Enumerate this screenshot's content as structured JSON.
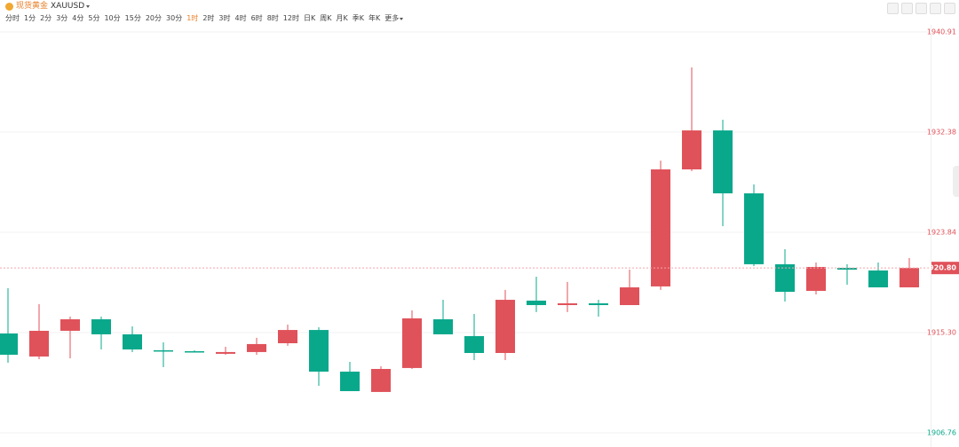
{
  "toolbar": {
    "symbol_name": "现货黄金",
    "symbol": "XAUUSD",
    "intervals": [
      "分时",
      "1分",
      "2分",
      "3分",
      "4分",
      "5分",
      "10分",
      "15分",
      "20分",
      "30分",
      "1时",
      "2时",
      "3时",
      "4时",
      "6时",
      "8时",
      "12时",
      "日K",
      "周K",
      "月K",
      "季K",
      "年K",
      "更多"
    ],
    "active_interval": 10
  },
  "chart_data": {
    "type": "candlestick",
    "up_color": "#e0525a",
    "down_color": "#0aa88b",
    "grid": true,
    "open": [
      1915.22,
      1913.26,
      1915.45,
      1916.43,
      1915.15,
      1913.79,
      1913.71,
      1913.49,
      1913.64,
      1914.39,
      1915.52,
      1911.97,
      1910.24,
      1912.28,
      1916.43,
      1915.0,
      1913.56,
      1918.02,
      1917.64,
      1917.79,
      1917.64,
      1919.23,
      1929.2,
      1932.52,
      1927.16,
      1921.12,
      1918.85,
      1920.81,
      1920.59,
      1919.15
    ],
    "high": [
      1919.08,
      1917.72,
      1916.66,
      1916.66,
      1915.83,
      1914.47,
      1913.79,
      1914.09,
      1914.85,
      1915.98,
      1915.75,
      1912.8,
      1912.43,
      1917.19,
      1918.09,
      1916.88,
      1918.93,
      1920.06,
      1919.61,
      1918.09,
      1920.66,
      1929.95,
      1937.89,
      1933.43,
      1927.92,
      1922.4,
      1921.27,
      1921.12,
      1921.27,
      1921.64
    ],
    "low": [
      1912.73,
      1913.03,
      1913.11,
      1913.86,
      1913.64,
      1912.35,
      1913.64,
      1913.41,
      1913.41,
      1914.17,
      1910.76,
      1910.31,
      1910.24,
      1912.2,
      1915.15,
      1912.96,
      1912.96,
      1917.04,
      1917.04,
      1916.66,
      1917.64,
      1918.93,
      1929.05,
      1924.36,
      1920.96,
      1917.94,
      1918.55,
      1919.38,
      1919.15,
      1919.15
    ],
    "close": [
      1913.41,
      1915.45,
      1916.43,
      1915.15,
      1913.86,
      1913.71,
      1913.64,
      1913.64,
      1914.32,
      1915.52,
      1911.97,
      1910.31,
      1912.2,
      1916.51,
      1915.15,
      1913.56,
      1918.09,
      1917.64,
      1917.79,
      1917.64,
      1919.15,
      1929.2,
      1932.52,
      1927.16,
      1921.12,
      1918.77,
      1920.89,
      1920.66,
      1919.15,
      1920.8
    ],
    "ylim": [
      1906.76,
      1940.91
    ],
    "yticks": [
      1906.76,
      {
        "value": 1915.3,
        "label": "1915.30"
      },
      1923.84,
      1932.38,
      1940.91
    ],
    "current_price": {
      "value": 1920.8,
      "label": "1920.80"
    }
  }
}
